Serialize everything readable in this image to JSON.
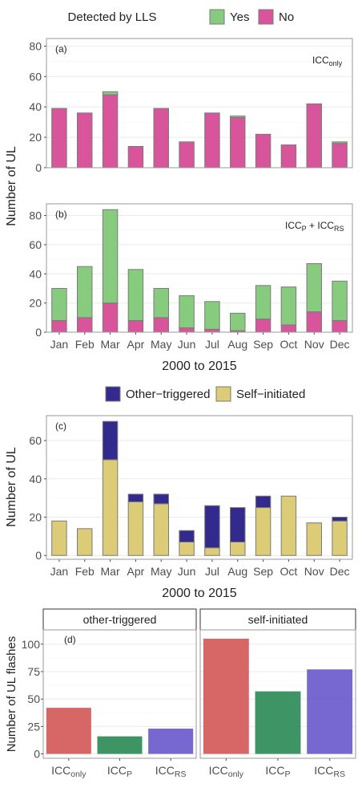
{
  "chart_data": [
    {
      "type": "bar",
      "stacked": true,
      "panel_label": "(a)",
      "annotation": "ICConly",
      "legend_title": "Detected by LLS",
      "categories": [
        "Jan",
        "Feb",
        "Mar",
        "Apr",
        "May",
        "Jun",
        "Jul",
        "Aug",
        "Sep",
        "Oct",
        "Nov",
        "Dec"
      ],
      "series": [
        {
          "name": "No",
          "color": "#d8549b",
          "values": [
            39,
            36,
            48,
            14,
            39,
            17,
            36,
            33,
            22,
            15,
            42,
            16
          ]
        },
        {
          "name": "Yes",
          "color": "#87cc7e",
          "values": [
            0,
            0,
            2,
            0,
            0,
            0,
            0,
            1,
            0,
            0,
            0,
            1
          ]
        }
      ],
      "ylabel": "Number of UL",
      "ylim": [
        0,
        85
      ],
      "yticks": [
        0,
        20,
        40,
        60,
        80
      ],
      "grid": true,
      "legend_position": "top"
    },
    {
      "type": "bar",
      "stacked": true,
      "panel_label": "(b)",
      "annotation_parts": [
        "ICC",
        "P",
        " + ICC",
        "RS"
      ],
      "categories": [
        "Jan",
        "Feb",
        "Mar",
        "Apr",
        "May",
        "Jun",
        "Jul",
        "Aug",
        "Sep",
        "Oct",
        "Nov",
        "Dec"
      ],
      "series": [
        {
          "name": "No",
          "color": "#d8549b",
          "values": [
            8,
            10,
            20,
            8,
            10,
            3,
            2,
            1,
            9,
            5,
            14,
            8
          ]
        },
        {
          "name": "Yes",
          "color": "#87cc7e",
          "values": [
            22,
            35,
            64,
            35,
            20,
            22,
            19,
            12,
            23,
            26,
            33,
            27
          ]
        }
      ],
      "xlabel": "2000 to 2015",
      "ylim": [
        0,
        88
      ],
      "yticks": [
        0,
        20,
        40,
        60,
        80
      ],
      "grid": true
    },
    {
      "type": "bar",
      "stacked": true,
      "panel_label": "(c)",
      "categories": [
        "Jan",
        "Feb",
        "Mar",
        "Apr",
        "May",
        "Jun",
        "Jul",
        "Aug",
        "Sep",
        "Oct",
        "Nov",
        "Dec"
      ],
      "series": [
        {
          "name": "Self−initiated",
          "color": "#dccb77",
          "values": [
            18,
            14,
            50,
            28,
            27,
            7,
            4,
            7,
            25,
            31,
            17,
            18
          ]
        },
        {
          "name": "Other−triggered",
          "color": "#322a8d",
          "values": [
            0,
            0,
            20,
            4,
            5,
            6,
            22,
            18,
            6,
            0,
            0,
            2
          ]
        }
      ],
      "xlabel": "2000 to 2015",
      "ylabel": "Number of UL",
      "ylim": [
        -2,
        73
      ],
      "yticks": [
        0,
        20,
        40,
        60
      ],
      "grid": true,
      "legend_position": "top"
    },
    {
      "type": "bar",
      "faceted": true,
      "panel_label": "(d)",
      "ylabel": "Number of UL flashes",
      "ylim": [
        -4,
        113
      ],
      "yticks": [
        0,
        25,
        50,
        75,
        100
      ],
      "grid": true,
      "facets": [
        {
          "title": "other-triggered",
          "values": [
            42,
            16,
            23
          ]
        },
        {
          "title": "self-initiated",
          "values": [
            105,
            57,
            77
          ]
        }
      ],
      "categories": [
        {
          "base": "ICC",
          "sub": "only",
          "color": "#d45a5a"
        },
        {
          "base": "ICC",
          "sub": "P",
          "color": "#2e8b57"
        },
        {
          "base": "ICC",
          "sub": "RS",
          "color": "#6a5acd"
        }
      ]
    }
  ]
}
